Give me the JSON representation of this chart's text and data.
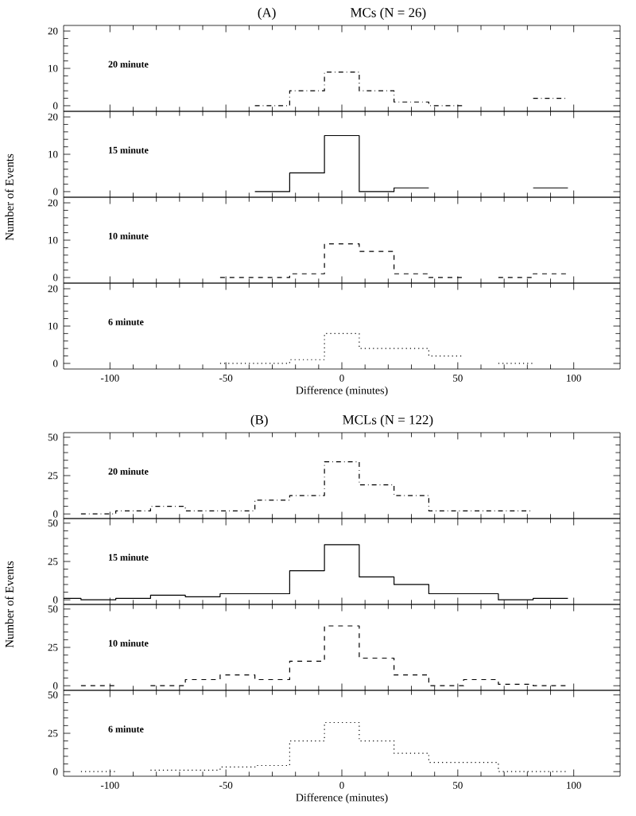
{
  "chart_data": [
    {
      "type": "step",
      "title": "(A)",
      "subtitle": "MCs (N = 26)",
      "annotations": [
        "20 minute"
      ],
      "x": [
        -37.5,
        -22.5,
        -7.5,
        7.5,
        22.5,
        37.5,
        52.5,
        67.5,
        82.5,
        97.5
      ],
      "values": [
        0,
        4,
        9,
        4,
        1,
        0,
        null,
        null,
        2,
        2
      ],
      "color": "#000000",
      "line_style": "dashdot",
      "xlim": [
        -120,
        120
      ],
      "ylim": [
        -1.5,
        21.5
      ],
      "xticks": [
        -100,
        -50,
        0,
        50,
        100
      ],
      "yticks": [
        0,
        10,
        20
      ],
      "tick_labels": "y"
    },
    {
      "type": "step",
      "ylabel": "Number of Events",
      "annotations": [
        "15 minute"
      ],
      "x": [
        -37.5,
        -22.5,
        -7.5,
        7.5,
        22.5,
        37.5,
        52.5,
        67.5,
        82.5,
        97.5
      ],
      "values": [
        0,
        5,
        15,
        0,
        1,
        null,
        null,
        null,
        1,
        1
      ],
      "color": "#000000",
      "line_style": "solid",
      "xlim": [
        -120,
        120
      ],
      "ylim": [
        -1.5,
        21.5
      ],
      "xticks": [
        -100,
        -50,
        0,
        50,
        100
      ],
      "yticks": [
        0,
        10,
        20
      ],
      "tick_labels": "y"
    },
    {
      "type": "step",
      "annotations": [
        "10 minute"
      ],
      "x": [
        -52.5,
        -37.5,
        -22.5,
        -7.5,
        7.5,
        22.5,
        37.5,
        52.5,
        67.5,
        82.5,
        97.5
      ],
      "values": [
        0,
        0,
        1,
        9,
        7,
        1,
        0,
        null,
        0,
        1,
        1
      ],
      "color": "#000000",
      "line_style": "dashed",
      "xlim": [
        -120,
        120
      ],
      "ylim": [
        -1.5,
        21.5
      ],
      "xticks": [
        -100,
        -50,
        0,
        50,
        100
      ],
      "yticks": [
        0,
        10,
        20
      ],
      "tick_labels": "y"
    },
    {
      "type": "step",
      "xlabel": "Difference (minutes)",
      "annotations": [
        "6 minute"
      ],
      "x": [
        -52.5,
        -37.5,
        -22.5,
        -7.5,
        7.5,
        22.5,
        37.5,
        52.5,
        67.5,
        82.5
      ],
      "values": [
        0,
        0,
        1,
        8,
        4,
        4,
        2,
        null,
        0,
        0
      ],
      "color": "#000000",
      "line_style": "dotted",
      "xlim": [
        -120,
        120
      ],
      "ylim": [
        -1.5,
        21.5
      ],
      "xticks": [
        -100,
        -50,
        0,
        50,
        100
      ],
      "yticks": [
        0,
        10,
        20
      ]
    },
    {
      "type": "step",
      "title": "(B)",
      "subtitle": "MCLs (N = 122)",
      "annotations": [
        "20 minute"
      ],
      "x": [
        -112.5,
        -97.5,
        -82.5,
        -67.5,
        -52.5,
        -37.5,
        -22.5,
        -7.5,
        7.5,
        22.5,
        37.5,
        52.5,
        67.5,
        82.5
      ],
      "values": [
        0,
        2,
        5,
        2,
        2,
        9,
        12,
        34,
        19,
        12,
        2,
        2,
        2,
        2
      ],
      "color": "#000000",
      "line_style": "dashdot",
      "xlim": [
        -120,
        120
      ],
      "ylim": [
        -3,
        53
      ],
      "xticks": [
        -100,
        -50,
        0,
        50,
        100
      ],
      "yticks": [
        0,
        25,
        50
      ],
      "tick_labels": "y"
    },
    {
      "type": "step",
      "ylabel": "Number of Events",
      "annotations": [
        "15 minute"
      ],
      "x": [
        -120,
        -112.5,
        -97.5,
        -82.5,
        -67.5,
        -52.5,
        -37.5,
        -22.5,
        -7.5,
        7.5,
        22.5,
        37.5,
        52.5,
        67.5,
        82.5,
        97.5
      ],
      "values": [
        1,
        0,
        1,
        3,
        2,
        4,
        4,
        19,
        36,
        15,
        10,
        4,
        4,
        0,
        1,
        1
      ],
      "color": "#000000",
      "line_style": "solid",
      "xlim": [
        -120,
        120
      ],
      "ylim": [
        -3,
        53
      ],
      "xticks": [
        -100,
        -50,
        0,
        50,
        100
      ],
      "yticks": [
        0,
        25,
        50
      ],
      "tick_labels": "y"
    },
    {
      "type": "step",
      "annotations": [
        "10 minute"
      ],
      "x": [
        -112.5,
        -97.5,
        -82.5,
        -67.5,
        -52.5,
        -37.5,
        -22.5,
        -7.5,
        7.5,
        22.5,
        37.5,
        52.5,
        67.5,
        82.5,
        97.5
      ],
      "values": [
        0,
        null,
        0,
        4,
        7,
        4,
        16,
        39,
        18,
        7,
        0,
        4,
        1,
        0,
        0
      ],
      "color": "#000000",
      "line_style": "dashed",
      "xlim": [
        -120,
        120
      ],
      "ylim": [
        -3,
        53
      ],
      "xticks": [
        -100,
        -50,
        0,
        50,
        100
      ],
      "yticks": [
        0,
        25,
        50
      ],
      "tick_labels": "y"
    },
    {
      "type": "step",
      "xlabel": "Difference (minutes)",
      "annotations": [
        "6 minute"
      ],
      "x": [
        -112.5,
        -97.5,
        -82.5,
        -67.5,
        -52.5,
        -37.5,
        -22.5,
        -7.5,
        7.5,
        22.5,
        37.5,
        52.5,
        67.5,
        82.5,
        97.5
      ],
      "values": [
        0,
        null,
        1,
        1,
        3,
        4,
        20,
        32,
        20,
        12,
        6,
        6,
        0,
        0,
        0
      ],
      "color": "#000000",
      "line_style": "dotted",
      "xlim": [
        -120,
        120
      ],
      "ylim": [
        -3,
        53
      ],
      "xticks": [
        -100,
        -50,
        0,
        50,
        100
      ],
      "yticks": [
        0,
        25,
        50
      ]
    }
  ]
}
